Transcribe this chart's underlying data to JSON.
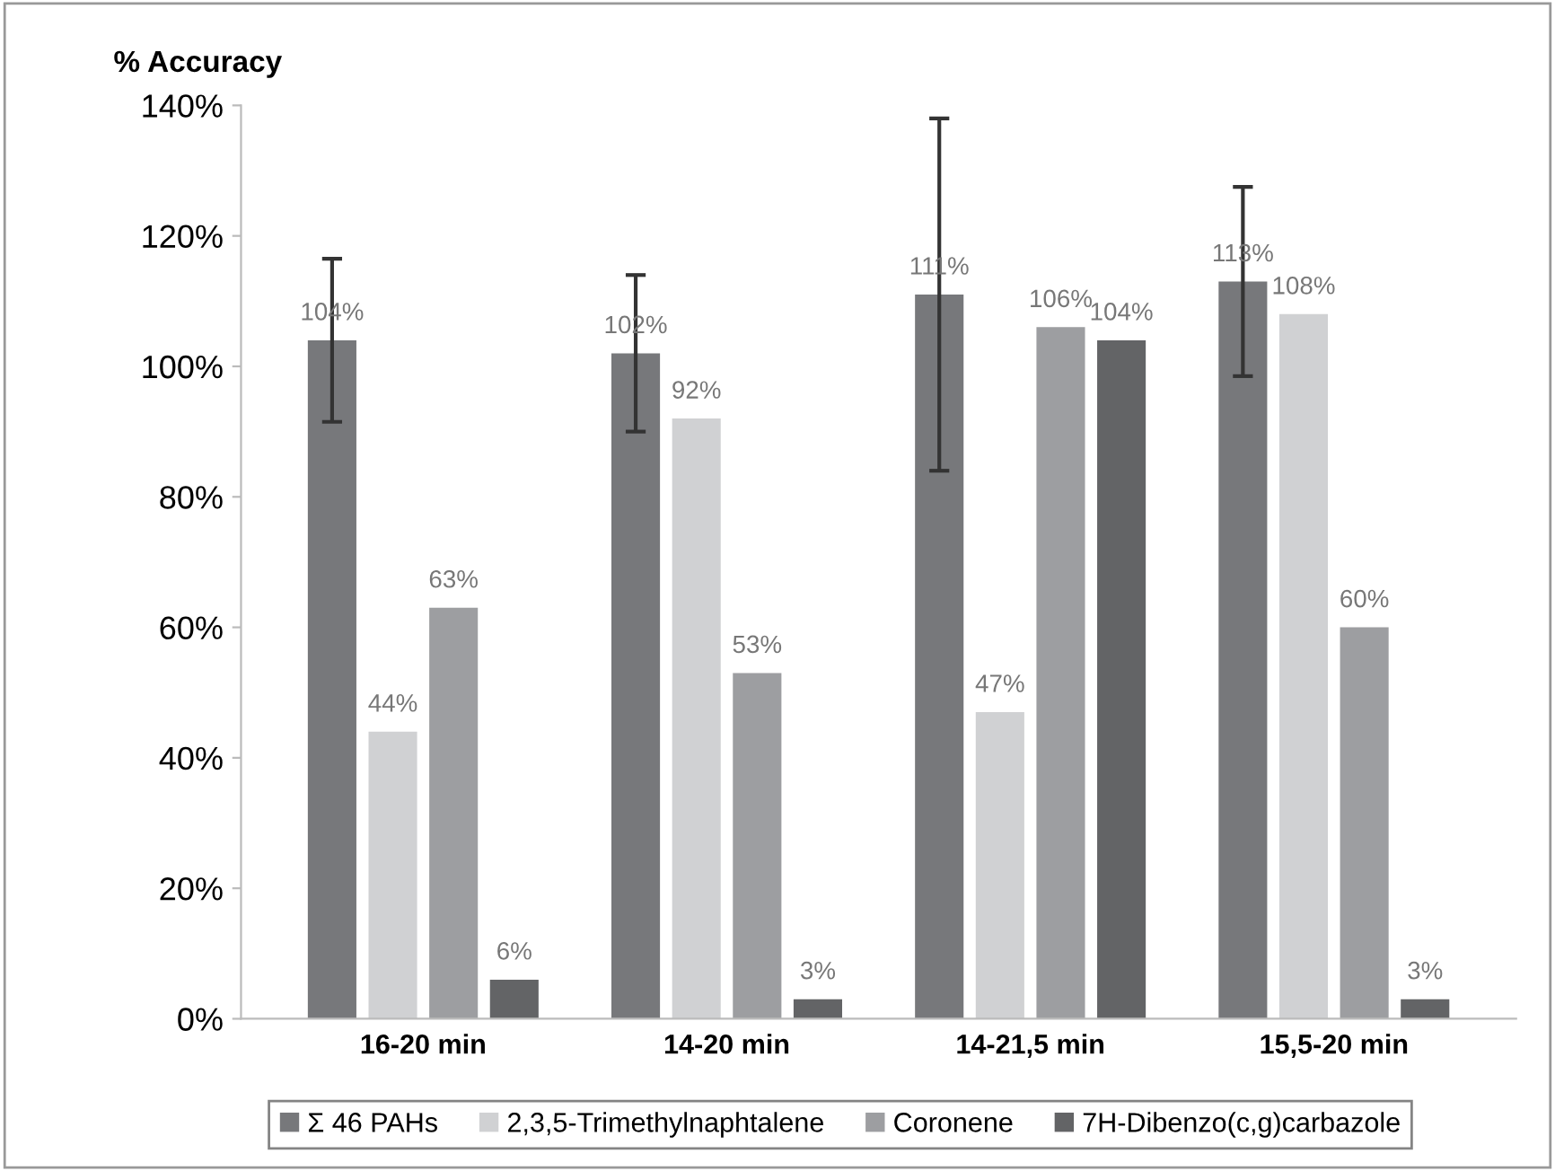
{
  "chart_data": {
    "type": "bar",
    "ylabel": "% Accuracy",
    "categories": [
      "16-20 min",
      "14-20 min",
      "14-21,5 min",
      "15,5-20 min"
    ],
    "series": [
      {
        "name": "Σ 46 PAHs",
        "color": "#77787b",
        "values": [
          104,
          102,
          111,
          113
        ],
        "value_labels": [
          "104%",
          "102%",
          "111%",
          "113%"
        ],
        "errors": [
          12.5,
          12,
          27,
          14.5
        ]
      },
      {
        "name": "2,3,5-Trimethylnaphtalene",
        "color": "#d0d1d3",
        "values": [
          44,
          92,
          47,
          108
        ],
        "value_labels": [
          "44%",
          "92%",
          "47%",
          "108%"
        ]
      },
      {
        "name": "Coronene",
        "color": "#9d9ea1",
        "values": [
          63,
          53,
          106,
          60
        ],
        "value_labels": [
          "63%",
          "53%",
          "106%",
          "60%"
        ]
      },
      {
        "name": "7H-Dibenzo(c,g)carbazole",
        "color": "#636466",
        "values": [
          6,
          3,
          104,
          3
        ],
        "value_labels": [
          "6%",
          "3%",
          "104%",
          "3%"
        ]
      }
    ],
    "ylim": [
      0,
      140
    ],
    "yticks": [
      {
        "value": 0,
        "label": "0%"
      },
      {
        "value": 20,
        "label": "20%"
      },
      {
        "value": 40,
        "label": "40%"
      },
      {
        "value": 60,
        "label": "60%"
      },
      {
        "value": 80,
        "label": "80%"
      },
      {
        "value": 100,
        "label": "100%"
      },
      {
        "value": 120,
        "label": "120%"
      },
      {
        "value": 140,
        "label": "140%"
      }
    ],
    "grid": false,
    "legend": "bottom"
  }
}
